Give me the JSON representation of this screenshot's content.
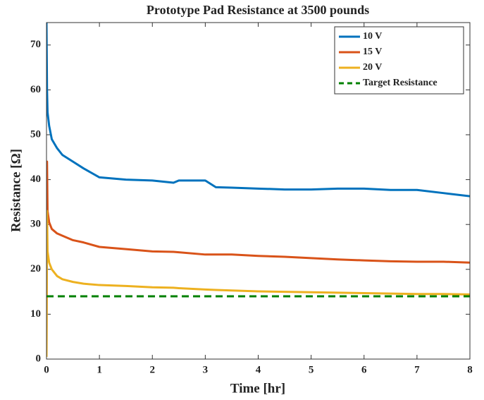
{
  "chart_data": {
    "type": "line",
    "title": "Prototype Pad Resistance at 3500 pounds",
    "x_label": "Time [hr]",
    "y_label": "Resistance [Ω]",
    "x": [
      0,
      0.01,
      0.02,
      0.05,
      0.1,
      0.2,
      0.3,
      0.5,
      0.7,
      1,
      1.5,
      2,
      2.4,
      2.5,
      3,
      3.2,
      3.5,
      4,
      4.5,
      5,
      5.5,
      6,
      6.5,
      7,
      7.5,
      8
    ],
    "series": [
      {
        "name": "10 V",
        "color": "#0072bd",
        "values": [
          75,
          60,
          55,
          52,
          49,
          47,
          45.5,
          44,
          42.5,
          40.5,
          40,
          39.8,
          39.3,
          39.8,
          39.8,
          38.3,
          38.2,
          38,
          37.8,
          37.8,
          38,
          38,
          37.7,
          37.7,
          37,
          36.3
        ]
      },
      {
        "name": "15 V",
        "color": "#d95319",
        "values": [
          1,
          44,
          33,
          30.5,
          29,
          28,
          27.5,
          26.5,
          26,
          25,
          24.5,
          24,
          23.9,
          23.8,
          23.3,
          23.3,
          23.3,
          23,
          22.8,
          22.5,
          22.2,
          22,
          21.8,
          21.7,
          21.7,
          21.5
        ]
      },
      {
        "name": "20 V",
        "color": "#edb120",
        "values": [
          0.5,
          33,
          24,
          21.5,
          20,
          18.5,
          17.8,
          17.2,
          16.8,
          16.5,
          16.3,
          16,
          15.9,
          15.8,
          15.5,
          15.4,
          15.3,
          15.1,
          15,
          14.9,
          14.8,
          14.7,
          14.6,
          14.5,
          14.5,
          14.4
        ]
      },
      {
        "name": "Target Resistance",
        "color": "#008000",
        "dashed": true,
        "x": [
          0,
          8
        ],
        "values": [
          14,
          14
        ]
      }
    ],
    "xlim": [
      0,
      8
    ],
    "xticks": [
      0,
      1,
      2,
      3,
      4,
      5,
      6,
      7,
      8
    ],
    "ylim": [
      0,
      75
    ],
    "yticks": [
      0,
      10,
      20,
      30,
      40,
      50,
      60,
      70
    ],
    "legend": "top-right"
  }
}
